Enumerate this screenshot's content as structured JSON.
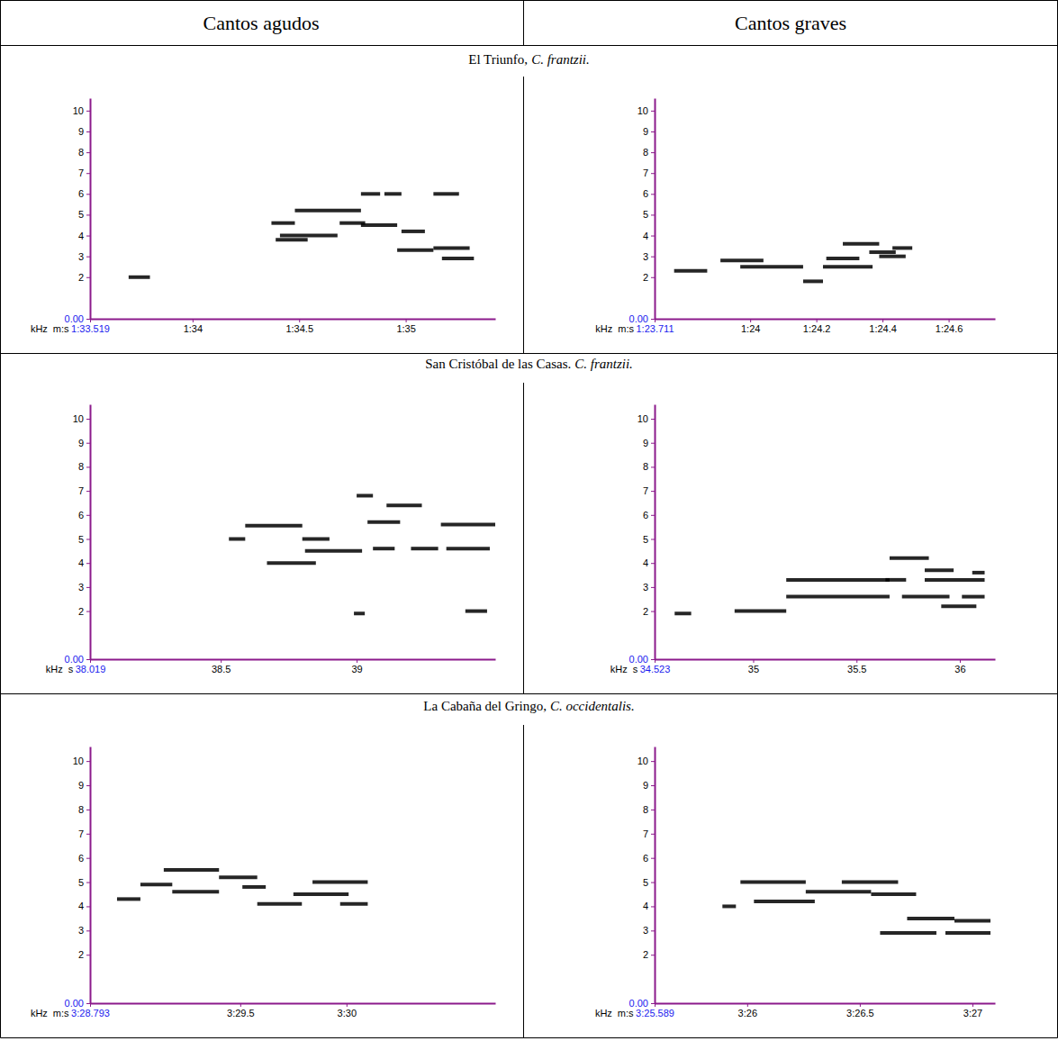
{
  "columns": [
    "Cantos agudos",
    "Cantos graves"
  ],
  "rows": [
    {
      "place": "El Triunfo,",
      "species": "C. frantzii."
    },
    {
      "place": "San Cristóbal de las Casas.",
      "species": "C. frantzii."
    },
    {
      "place": "La Cabaña del Gringo,",
      "species": "C. occidentalis."
    }
  ],
  "chart_data": [
    {
      "type": "spectrogram",
      "xlabel": "m:s",
      "ylabel": "kHz",
      "color": "#000000",
      "xlim": [
        93.519,
        95.42
      ],
      "ylim": [
        0,
        10.6
      ],
      "xticks": [
        {
          "value": 93.519,
          "label": "1:33.519"
        },
        {
          "value": 94,
          "label": "1:34"
        },
        {
          "value": 94.5,
          "label": "1:34.5"
        },
        {
          "value": 95,
          "label": "1:35"
        }
      ],
      "yticks": [
        {
          "value": 0,
          "label": "0.00"
        },
        2,
        3,
        4,
        5,
        6,
        7,
        8,
        9,
        10
      ],
      "x": [
        93.7,
        94.37,
        94.39,
        94.41,
        94.48,
        94.69,
        94.79,
        94.79,
        94.9,
        94.96,
        94.98,
        95.13,
        95.13,
        95.17
      ],
      "x_end": [
        93.8,
        94.48,
        94.54,
        94.68,
        94.79,
        94.81,
        94.96,
        94.88,
        94.98,
        95.13,
        95.09,
        95.25,
        95.3,
        95.32
      ],
      "values": [
        2.0,
        4.6,
        3.8,
        4.0,
        5.2,
        4.6,
        4.5,
        6.0,
        6.0,
        3.3,
        4.2,
        6.0,
        3.4,
        2.9
      ]
    },
    {
      "type": "spectrogram",
      "xlabel": "m:s",
      "ylabel": "kHz",
      "color": "#000000",
      "xlim": [
        83.711,
        84.74
      ],
      "ylim": [
        0,
        10.6
      ],
      "xticks": [
        {
          "value": 83.711,
          "label": "1:23.711"
        },
        {
          "value": 84,
          "label": "1:24"
        },
        {
          "value": 84.2,
          "label": "1:24.2"
        },
        {
          "value": 84.4,
          "label": "1:24.4"
        },
        {
          "value": 84.6,
          "label": "1:24.6"
        }
      ],
      "yticks": [
        {
          "value": 0,
          "label": "0.00"
        },
        2,
        3,
        4,
        5,
        6,
        7,
        8,
        9,
        10
      ],
      "x": [
        83.77,
        83.91,
        83.97,
        84.16,
        84.22,
        84.23,
        84.28,
        84.36,
        84.39,
        84.43
      ],
      "x_end": [
        83.87,
        84.04,
        84.16,
        84.22,
        84.37,
        84.33,
        84.39,
        84.44,
        84.47,
        84.49
      ],
      "values": [
        2.3,
        2.8,
        2.5,
        1.8,
        2.5,
        2.9,
        3.6,
        3.2,
        3.0,
        3.4
      ]
    },
    {
      "type": "spectrogram",
      "xlabel": "s",
      "ylabel": "kHz",
      "color": "#000000",
      "xlim": [
        38.019,
        39.51
      ],
      "ylim": [
        0,
        10.6
      ],
      "xticks": [
        38.019,
        38.5,
        39
      ],
      "yticks": [
        {
          "value": 0,
          "label": "0.00"
        },
        2,
        3,
        4,
        5,
        6,
        7,
        8,
        9,
        10
      ],
      "x": [
        38.53,
        38.59,
        38.67,
        38.8,
        38.81,
        39.0,
        39.04,
        39.11,
        39.06,
        39.2,
        39.33,
        39.31,
        38.99,
        39.4
      ],
      "x_end": [
        38.59,
        38.8,
        38.85,
        38.9,
        39.02,
        39.06,
        39.16,
        39.24,
        39.14,
        39.3,
        39.49,
        39.51,
        39.03,
        39.48
      ],
      "values": [
        5.0,
        5.55,
        4.0,
        5.0,
        4.5,
        6.8,
        5.7,
        6.4,
        4.6,
        4.6,
        4.6,
        5.6,
        1.9,
        2.0
      ]
    },
    {
      "type": "spectrogram",
      "xlabel": "s",
      "ylabel": "kHz",
      "color": "#000000",
      "xlim": [
        34.523,
        36.17
      ],
      "ylim": [
        0,
        10.6
      ],
      "xticks": [
        34.523,
        35,
        35.5,
        36
      ],
      "yticks": [
        {
          "value": 0,
          "label": "0.00"
        },
        2,
        3,
        4,
        5,
        6,
        7,
        8,
        9,
        10
      ],
      "x": [
        34.62,
        34.91,
        35.16,
        35.16,
        35.64,
        35.66,
        35.72,
        35.83,
        35.83,
        35.91,
        36.01,
        36.06
      ],
      "x_end": [
        34.7,
        35.16,
        35.66,
        35.66,
        35.74,
        35.85,
        35.95,
        35.97,
        36.12,
        36.08,
        36.12,
        36.12
      ],
      "values": [
        1.9,
        2.0,
        3.3,
        2.6,
        3.3,
        4.2,
        2.6,
        3.7,
        3.3,
        2.2,
        2.6,
        3.6
      ]
    },
    {
      "type": "spectrogram",
      "xlabel": "m:s",
      "ylabel": "kHz",
      "color": "#000000",
      "xlim": [
        208.793,
        210.7
      ],
      "ylim": [
        0,
        10.6
      ],
      "xticks": [
        {
          "value": 208.793,
          "label": "3:28.793"
        },
        {
          "value": 209.5,
          "label": "3:29.5"
        },
        {
          "value": 210,
          "label": "3:30"
        }
      ],
      "yticks": [
        {
          "value": 0,
          "label": "0.00"
        },
        2,
        3,
        4,
        5,
        6,
        7,
        8,
        9,
        10
      ],
      "x": [
        208.92,
        209.03,
        209.14,
        209.18,
        209.4,
        209.51,
        209.58,
        209.75,
        209.84,
        209.97
      ],
      "x_end": [
        209.03,
        209.18,
        209.4,
        209.4,
        209.58,
        209.62,
        209.79,
        210.01,
        210.1,
        210.1
      ],
      "values": [
        4.3,
        4.9,
        5.5,
        4.6,
        5.2,
        4.8,
        4.1,
        4.5,
        5.0,
        4.1
      ]
    },
    {
      "type": "spectrogram",
      "xlabel": "m:s",
      "ylabel": "kHz",
      "color": "#000000",
      "xlim": [
        205.589,
        207.1
      ],
      "ylim": [
        0,
        10.6
      ],
      "xticks": [
        {
          "value": 205.589,
          "label": "3:25.589"
        },
        {
          "value": 206,
          "label": "3:26"
        },
        {
          "value": 206.5,
          "label": "3:26.5"
        },
        {
          "value": 207,
          "label": "3:27"
        }
      ],
      "yticks": [
        {
          "value": 0,
          "label": "0.00"
        },
        2,
        3,
        4,
        5,
        6,
        7,
        8,
        9,
        10
      ],
      "x": [
        205.89,
        205.97,
        206.03,
        206.26,
        206.42,
        206.55,
        206.59,
        206.71,
        206.88,
        206.92
      ],
      "x_end": [
        205.95,
        206.26,
        206.3,
        206.55,
        206.67,
        206.75,
        206.84,
        206.92,
        207.08,
        207.08
      ],
      "values": [
        4.0,
        5.0,
        4.2,
        4.6,
        5.0,
        4.5,
        2.9,
        3.5,
        2.9,
        3.4
      ]
    }
  ]
}
